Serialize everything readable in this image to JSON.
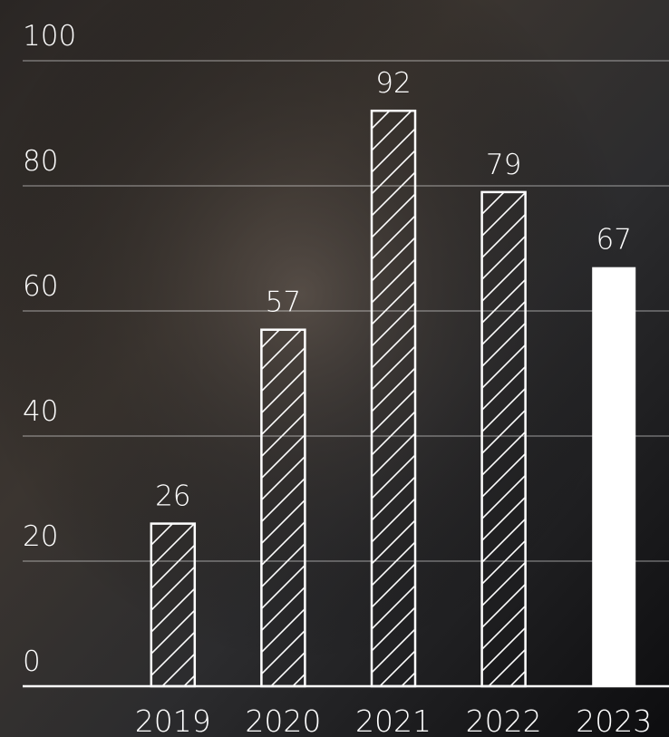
{
  "chart_data": {
    "type": "bar",
    "categories": [
      "2019",
      "2020",
      "2021",
      "2022",
      "2023"
    ],
    "values": [
      26,
      57,
      92,
      79,
      67
    ],
    "styles": [
      "hatched",
      "hatched",
      "hatched",
      "hatched",
      "solid"
    ],
    "color": "#ffffff",
    "ylim": [
      0,
      100
    ],
    "yticks": [
      0,
      20,
      40,
      60,
      80,
      100
    ],
    "grid": true
  }
}
